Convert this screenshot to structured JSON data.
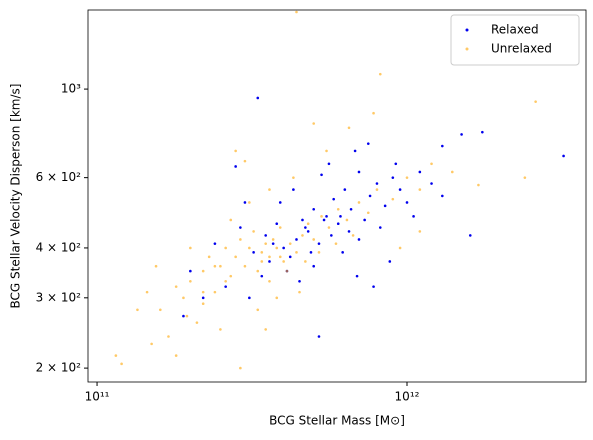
{
  "chart_data": {
    "type": "scatter",
    "xlabel": "BCG Stellar Mass [M⊙]",
    "ylabel": "BCG Stellar Velocity Disperson [km/s]",
    "xscale": "log",
    "yscale": "log",
    "xlim": [
      93500000000.0,
      3780000000000.0
    ],
    "ylim": [
      184.6,
      1578
    ],
    "xticks": [
      {
        "value": 100000000000.0,
        "label": "10¹¹"
      },
      {
        "value": 1000000000000.0,
        "label": "10¹²"
      }
    ],
    "yticks": [
      {
        "value": 200,
        "label": "2 × 10²"
      },
      {
        "value": 300,
        "label": "3 × 10²"
      },
      {
        "value": 400,
        "label": "4 × 10²"
      },
      {
        "value": 600,
        "label": "6 × 10²"
      },
      {
        "value": 1000,
        "label": "10³"
      }
    ],
    "legend": "upper right",
    "series": [
      {
        "name": "Relaxed",
        "color": "#0000ee",
        "opacity": 1,
        "x": [
          3200000000000.0,
          330000000000.0,
          520000000000.0,
          1750000000000.0,
          1300000000000.0,
          1500000000000.0,
          220000000000.0,
          190000000000.0,
          260000000000.0,
          280000000000.0,
          300000000000.0,
          350000000000.0,
          380000000000.0,
          400000000000.0,
          420000000000.0,
          440000000000.0,
          460000000000.0,
          480000000000.0,
          500000000000.0,
          520000000000.0,
          550000000000.0,
          580000000000.0,
          600000000000.0,
          630000000000.0,
          660000000000.0,
          700000000000.0,
          730000000000.0,
          760000000000.0,
          800000000000.0,
          850000000000.0,
          900000000000.0,
          950000000000.0,
          1000000000000.0,
          1100000000000.0,
          1200000000000.0,
          1300000000000.0,
          680000000000.0,
          750000000000.0,
          560000000000.0,
          410000000000.0,
          360000000000.0,
          320000000000.0,
          340000000000.0,
          450000000000.0,
          500000000000.0,
          620000000000.0,
          700000000000.0,
          820000000000.0,
          240000000000.0,
          290000000000.0,
          390000000000.0,
          430000000000.0,
          530000000000.0,
          650000000000.0,
          490000000000.0,
          570000000000.0,
          610000000000.0,
          370000000000.0,
          470000000000.0,
          540000000000.0,
          1600000000000.0,
          880000000000.0,
          780000000000.0,
          920000000000.0,
          200000000000.0,
          310000000000.0,
          690000000000.0,
          1050000000000.0
        ],
        "values": [
          680,
          950,
          240,
          780,
          720,
          770,
          300,
          270,
          320,
          640,
          520,
          430,
          460,
          400,
          380,
          420,
          470,
          440,
          500,
          410,
          480,
          530,
          460,
          560,
          500,
          620,
          470,
          540,
          580,
          510,
          600,
          560,
          520,
          620,
          580,
          540,
          700,
          730,
          650,
          350,
          370,
          390,
          340,
          330,
          360,
          390,
          420,
          450,
          410,
          450,
          520,
          560,
          610,
          440,
          390,
          430,
          480,
          410,
          450,
          470,
          430,
          370,
          320,
          650,
          350,
          300,
          340,
          480
        ]
      },
      {
        "name": "Unrelaxed",
        "color": "#ffa500",
        "opacity": 0.6,
        "x": [
          115000000000.0,
          120000000000.0,
          440000000000.0,
          2600000000000.0,
          2400000000000.0,
          1700000000000.0,
          820000000000.0,
          160000000000.0,
          155000000000.0,
          170000000000.0,
          180000000000.0,
          190000000000.0,
          200000000000.0,
          210000000000.0,
          220000000000.0,
          230000000000.0,
          240000000000.0,
          250000000000.0,
          260000000000.0,
          270000000000.0,
          280000000000.0,
          290000000000.0,
          300000000000.0,
          310000000000.0,
          320000000000.0,
          330000000000.0,
          340000000000.0,
          350000000000.0,
          360000000000.0,
          370000000000.0,
          380000000000.0,
          390000000000.0,
          400000000000.0,
          420000000000.0,
          440000000000.0,
          460000000000.0,
          480000000000.0,
          500000000000.0,
          530000000000.0,
          560000000000.0,
          600000000000.0,
          640000000000.0,
          700000000000.0,
          750000000000.0,
          800000000000.0,
          900000000000.0,
          1000000000000.0,
          1100000000000.0,
          1200000000000.0,
          1400000000000.0,
          290000000000.0,
          330000000000.0,
          380000000000.0,
          450000000000.0,
          250000000000.0,
          220000000000.0,
          180000000000.0,
          200000000000.0,
          270000000000.0,
          310000000000.0,
          360000000000.0,
          430000000000.0,
          300000000000.0,
          280000000000.0,
          550000000000.0,
          650000000000.0,
          780000000000.0,
          500000000000.0,
          360000000000.0,
          410000000000.0,
          470000000000.0,
          520000000000.0,
          590000000000.0,
          670000000000.0,
          340000000000.0,
          260000000000.0,
          240000000000.0,
          390000000000.0,
          220000000000.0,
          195000000000.0,
          145000000000.0,
          135000000000.0,
          150000000000.0,
          950000000000.0,
          1100000000000.0,
          350000000000.0
        ],
        "values": [
          215,
          205,
          1560,
          930,
          600,
          575,
          1090,
          280,
          360,
          240,
          215,
          300,
          330,
          260,
          350,
          380,
          310,
          360,
          400,
          340,
          380,
          420,
          360,
          400,
          440,
          350,
          390,
          410,
          380,
          420,
          400,
          450,
          370,
          410,
          390,
          430,
          460,
          420,
          480,
          450,
          500,
          470,
          520,
          490,
          560,
          530,
          600,
          560,
          650,
          620,
          200,
          280,
          300,
          310,
          250,
          290,
          320,
          400,
          470,
          520,
          560,
          600,
          660,
          700,
          700,
          800,
          870,
          820,
          330,
          350,
          370,
          390,
          410,
          430,
          370,
          330,
          360,
          380,
          310,
          270,
          310,
          280,
          230,
          400,
          440,
          250
        ]
      }
    ]
  }
}
